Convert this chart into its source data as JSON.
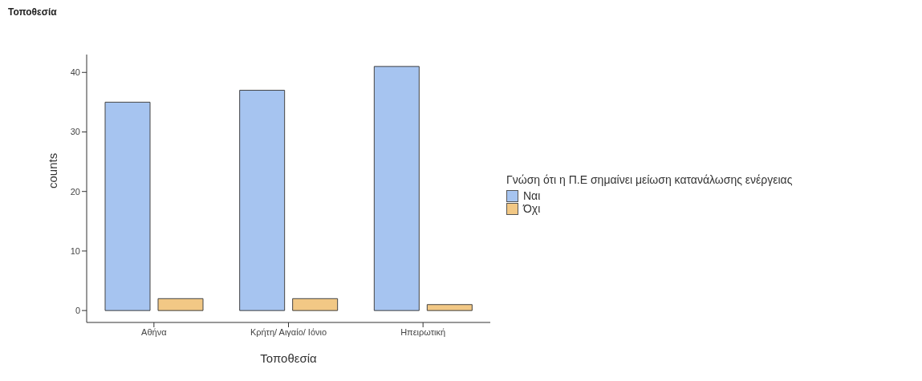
{
  "chart_data": {
    "type": "bar",
    "title": "Τοποθεσία",
    "xlabel": "Τοποθεσία",
    "ylabel": "counts",
    "legend_title": "Γνώση ότι η Π.Ε σημαίνει μείωση κατανάλωσης ενέργειας",
    "categories": [
      "Αθήνα",
      "Κρήτη/ Αιγαίο/ Ιόνιο",
      "Ηπειρωτική"
    ],
    "series": [
      {
        "name": "Ναι",
        "color": "#a6c4f0",
        "values": [
          35,
          37,
          41
        ]
      },
      {
        "name": "Όχι",
        "color": "#f2c885",
        "values": [
          2,
          2,
          1
        ]
      }
    ],
    "ylim": [
      -2,
      43
    ],
    "yticks": [
      0,
      10,
      20,
      30,
      40
    ],
    "grid": false,
    "legend": "right"
  }
}
